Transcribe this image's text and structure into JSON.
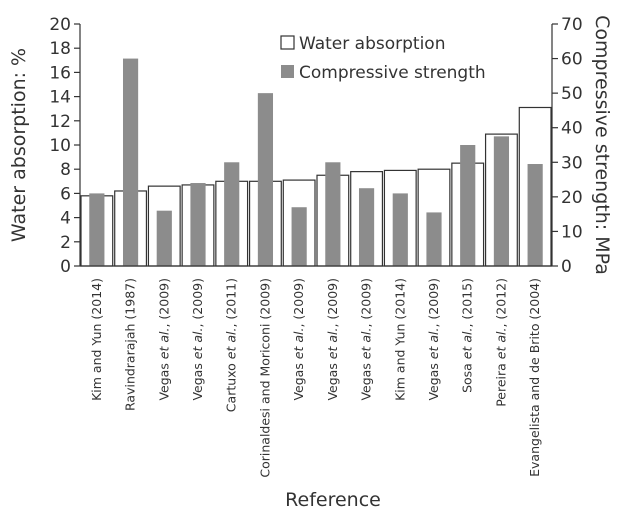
{
  "chart_data": {
    "type": "bar",
    "categories": [
      "Kim and Yun (2014)",
      "Ravindrarajah (1987)",
      "Vegas et al., (2009)",
      "Vegas et al., (2009)",
      "Cartuxo et al., (2011)",
      "Corinaldesi and Moriconi (2009)",
      "Vegas et al., (2009)",
      "Vegas et al., (2009)",
      "Vegas et al., (2009)",
      "Kim and Yun (2014)",
      "Vegas et al., (2009)",
      "Sosa et al., (2015)",
      "Pereira et al., (2012)",
      "Evangelista and de Brito (2004)"
    ],
    "series": [
      {
        "name": "Water absorption",
        "axis": "left",
        "style": "outline",
        "color": "#333333",
        "values": [
          5.8,
          6.2,
          6.6,
          6.7,
          7.0,
          7.0,
          7.1,
          7.5,
          7.8,
          7.9,
          8.0,
          8.5,
          10.9,
          13.1
        ]
      },
      {
        "name": "Compressive strength",
        "axis": "right",
        "style": "filled",
        "color": "#8c8c8c",
        "values": [
          21,
          60,
          16,
          24,
          30,
          50,
          17,
          30,
          22.5,
          21,
          15.5,
          35,
          37.5,
          29.5
        ]
      }
    ],
    "xlabel": "Reference",
    "ylabel": "Water absorption: %",
    "y2label": "Compressive strength: MPa",
    "ylim": [
      0,
      20
    ],
    "y2lim": [
      0,
      70
    ],
    "yticks": [
      "0",
      "2",
      "4",
      "6",
      "8",
      "10",
      "12",
      "14",
      "16",
      "18",
      "20"
    ],
    "y2ticks": [
      "0",
      "10",
      "20",
      "30",
      "40",
      "50",
      "60",
      "70"
    ],
    "grid": false,
    "legend": "top-center"
  }
}
